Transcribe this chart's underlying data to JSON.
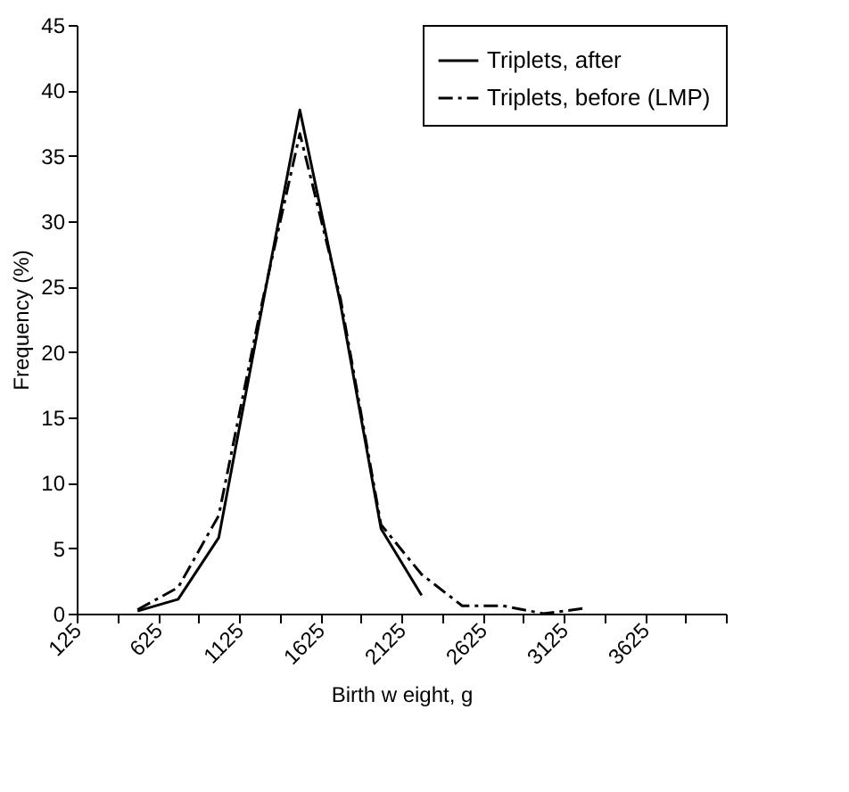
{
  "chart_data": {
    "type": "line",
    "xlabel": "Birth w eight, g",
    "ylabel": "Frequency (%)",
    "xlim": [
      125,
      4125
    ],
    "xticks": [
      125,
      {
        "value": 375,
        "label": null
      },
      625,
      {
        "value": 875,
        "label": null
      },
      1125,
      {
        "value": 1375,
        "label": null
      },
      1625,
      {
        "value": 1875,
        "label": null
      },
      2125,
      {
        "value": 2375,
        "label": null
      },
      2625,
      {
        "value": 2875,
        "label": null
      },
      3125,
      {
        "value": 3375,
        "label": null
      },
      3625,
      {
        "value": 3875,
        "label": null
      },
      {
        "value": 4125,
        "label": null
      }
    ],
    "ylim": [
      0,
      45
    ],
    "yticks": [
      0,
      5,
      10,
      15,
      20,
      25,
      30,
      35,
      40,
      45
    ],
    "grid": false,
    "legend": "top right",
    "marker": "none",
    "series": [
      {
        "name": "Triplets, after",
        "color": "#000000",
        "line_style": "solid",
        "x": [
          500,
          750,
          1000,
          1250,
          1500,
          1750,
          2000,
          2250
        ],
        "values": [
          0.2,
          1.1,
          5.8,
          22.3,
          38.5,
          23.7,
          6.5,
          1.4
        ]
      },
      {
        "name": "Triplets, before (LMP)",
        "color": "#000000",
        "line_style": "dashdot",
        "x": [
          500,
          750,
          1000,
          1250,
          1500,
          1750,
          2000,
          2250,
          2500,
          2750,
          3000,
          3250
        ],
        "values": [
          0.3,
          2.0,
          7.5,
          22.8,
          36.7,
          24.1,
          6.8,
          3.0,
          0.6,
          0.6,
          0.0,
          0.4
        ]
      }
    ]
  }
}
